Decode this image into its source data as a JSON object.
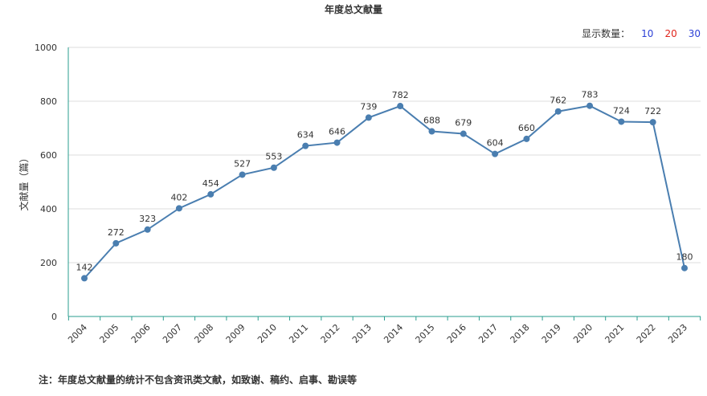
{
  "chart_data": {
    "type": "line",
    "title": "年度总文献量",
    "ylabel": "文献量（篇）",
    "xlabel": "",
    "ylim": [
      0,
      1000
    ],
    "yticks": [
      0,
      200,
      400,
      600,
      800,
      1000
    ],
    "grid": true,
    "x": [
      "2004",
      "2005",
      "2006",
      "2007",
      "2008",
      "2009",
      "2010",
      "2011",
      "2012",
      "2013",
      "2014",
      "2015",
      "2016",
      "2017",
      "2018",
      "2019",
      "2020",
      "2021",
      "2022",
      "2023"
    ],
    "values": [
      142,
      272,
      323,
      402,
      454,
      527,
      553,
      634,
      646,
      739,
      782,
      688,
      679,
      604,
      660,
      762,
      783,
      724,
      722,
      180
    ],
    "line_color": "#4a7eb0"
  },
  "controls": {
    "label": "显示数量：",
    "options": [
      {
        "label": "10",
        "color": "#2b3fd6"
      },
      {
        "label": "20",
        "color": "#e0241b"
      },
      {
        "label": "30",
        "color": "#2b3fd6"
      }
    ]
  },
  "note": "注：年度总文献量的统计不包含资讯类文献，如致谢、稿约、启事、勘误等"
}
